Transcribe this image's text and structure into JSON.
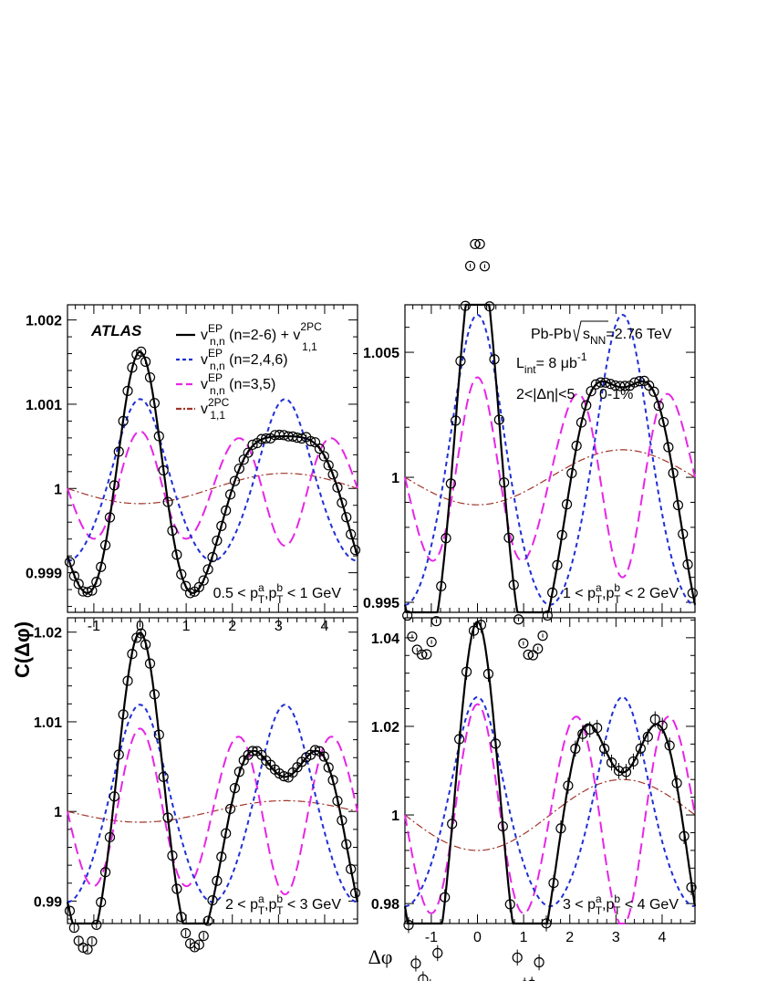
{
  "figure": {
    "xlabel": "Δφ",
    "ylabel": "C(Δφ)",
    "experiment": "ATLAS",
    "colors": {
      "full": "#000000",
      "even": "#1f2fd6",
      "odd": "#e626e6",
      "v11": "#a0352a"
    }
  },
  "legend": [
    {
      "id": "full",
      "base": "v",
      "sup": "EP",
      "sub": "n,n",
      "rest": " (n=2-6) + v",
      "sup2": "2PC",
      "sub2": "1,1",
      "style": "solid"
    },
    {
      "id": "even",
      "base": "v",
      "sup": "EP",
      "sub": "n,n",
      "rest": " (n=2,4,6)",
      "style": "dashed"
    },
    {
      "id": "odd",
      "base": "v",
      "sup": "EP",
      "sub": "n,n",
      "rest": " (n=3,5)",
      "style": "long-dashed"
    },
    {
      "id": "v11",
      "base": "v",
      "sup": "2PC",
      "sub": "1,1",
      "rest": "",
      "style": "dash-dot"
    }
  ],
  "info": {
    "system": "Pb-Pb",
    "energy_var": "s",
    "energy_sub": "NN",
    "energy_value": "=2.76 TeV",
    "lumi_prefix": "L",
    "lumi_sub": "int",
    "lumi_value": "= 8 μb",
    "lumi_exp": "-1",
    "eta_cut": "2<|Δη|<5",
    "centrality": "0-1%"
  },
  "chart_data": [
    {
      "type": "line",
      "panel": "top-left",
      "pt_range": {
        "low": "0.5",
        "high": "1 GeV"
      },
      "xlim": [
        -1.571,
        4.712
      ],
      "ylim": [
        0.99853,
        1.00218
      ],
      "xticks": [
        "-1",
        "0",
        "1",
        "2",
        "3",
        "4"
      ],
      "yticks": [
        {
          "value": 0.999,
          "label": "0.999"
        },
        {
          "value": 1.0,
          "label": "1"
        },
        {
          "value": 1.001,
          "label": "1.001"
        },
        {
          "value": 1.002,
          "label": "1.002"
        }
      ],
      "harmonics": {
        "c0": 1.0,
        "v11": -9e-05,
        "even": [
          0.00047,
          5e-05,
          1e-05
        ],
        "odd": [
          0.00031,
          3e-05
        ]
      },
      "full_curve_extra": {
        "v4": 3e-05
      },
      "data_points": {
        "n": 65,
        "scatter": 1.8e-05,
        "errors": 3e-05
      }
    },
    {
      "type": "line",
      "panel": "top-right",
      "pt_range": {
        "low": "1",
        "high": "2 GeV"
      },
      "xlim": [
        -1.571,
        4.712
      ],
      "ylim": [
        0.9946,
        1.0069
      ],
      "xticks": [],
      "yticks": [
        {
          "value": 0.995,
          "label": "0.995"
        },
        {
          "value": 1.0,
          "label": "1"
        },
        {
          "value": 1.005,
          "label": "1.005"
        }
      ],
      "harmonics": {
        "c0": 1.0,
        "v11": -0.00055,
        "even": [
          0.00285,
          0.00035,
          5e-05
        ],
        "odd": [
          0.00175,
          0.00025
        ]
      },
      "full_curve_extra": {},
      "data_points": {
        "n": 60,
        "scatter": 5e-05,
        "errors": 8e-05
      }
    },
    {
      "type": "line",
      "panel": "bottom-left",
      "pt_range": {
        "low": "2",
        "high": "3 GeV"
      },
      "xlim": [
        -1.571,
        4.712
      ],
      "ylim": [
        0.9875,
        1.0216
      ],
      "xticks": [],
      "yticks": [
        {
          "value": 0.99,
          "label": "0.99"
        },
        {
          "value": 1.0,
          "label": "1"
        },
        {
          "value": 1.01,
          "label": "1.01"
        },
        {
          "value": 1.02,
          "label": "1.02"
        }
      ],
      "harmonics": {
        "c0": 1.0,
        "v11": -0.0006,
        "even": [
          0.0054,
          0.00045,
          0.0001
        ],
        "odd": [
          0.0043,
          0.00032
        ]
      },
      "full_curve_extra": {},
      "data_points": {
        "n": 65,
        "scatter": 0.0002,
        "errors": 0.0004
      }
    },
    {
      "type": "line",
      "panel": "bottom-right",
      "pt_range": {
        "low": "3",
        "high": "4 GeV"
      },
      "xlim": [
        -1.571,
        4.712
      ],
      "ylim": [
        0.9755,
        1.0445
      ],
      "xticks": [
        "-1",
        "0",
        "1",
        "2",
        "3",
        "4"
      ],
      "yticks": [
        {
          "value": 0.98,
          "label": "0.98"
        },
        {
          "value": 1.0,
          "label": "1"
        },
        {
          "value": 1.02,
          "label": "1.02"
        },
        {
          "value": 1.04,
          "label": "1.04"
        }
      ],
      "harmonics": {
        "c0": 1.0,
        "v11": -0.004,
        "even": [
          0.0115,
          0.0015,
          0.0003
        ],
        "odd": [
          0.0115,
          0.001
        ]
      },
      "full_curve_extra": {},
      "data_points": {
        "n": 40,
        "scatter": 0.0012,
        "errors": 0.0018
      }
    }
  ]
}
